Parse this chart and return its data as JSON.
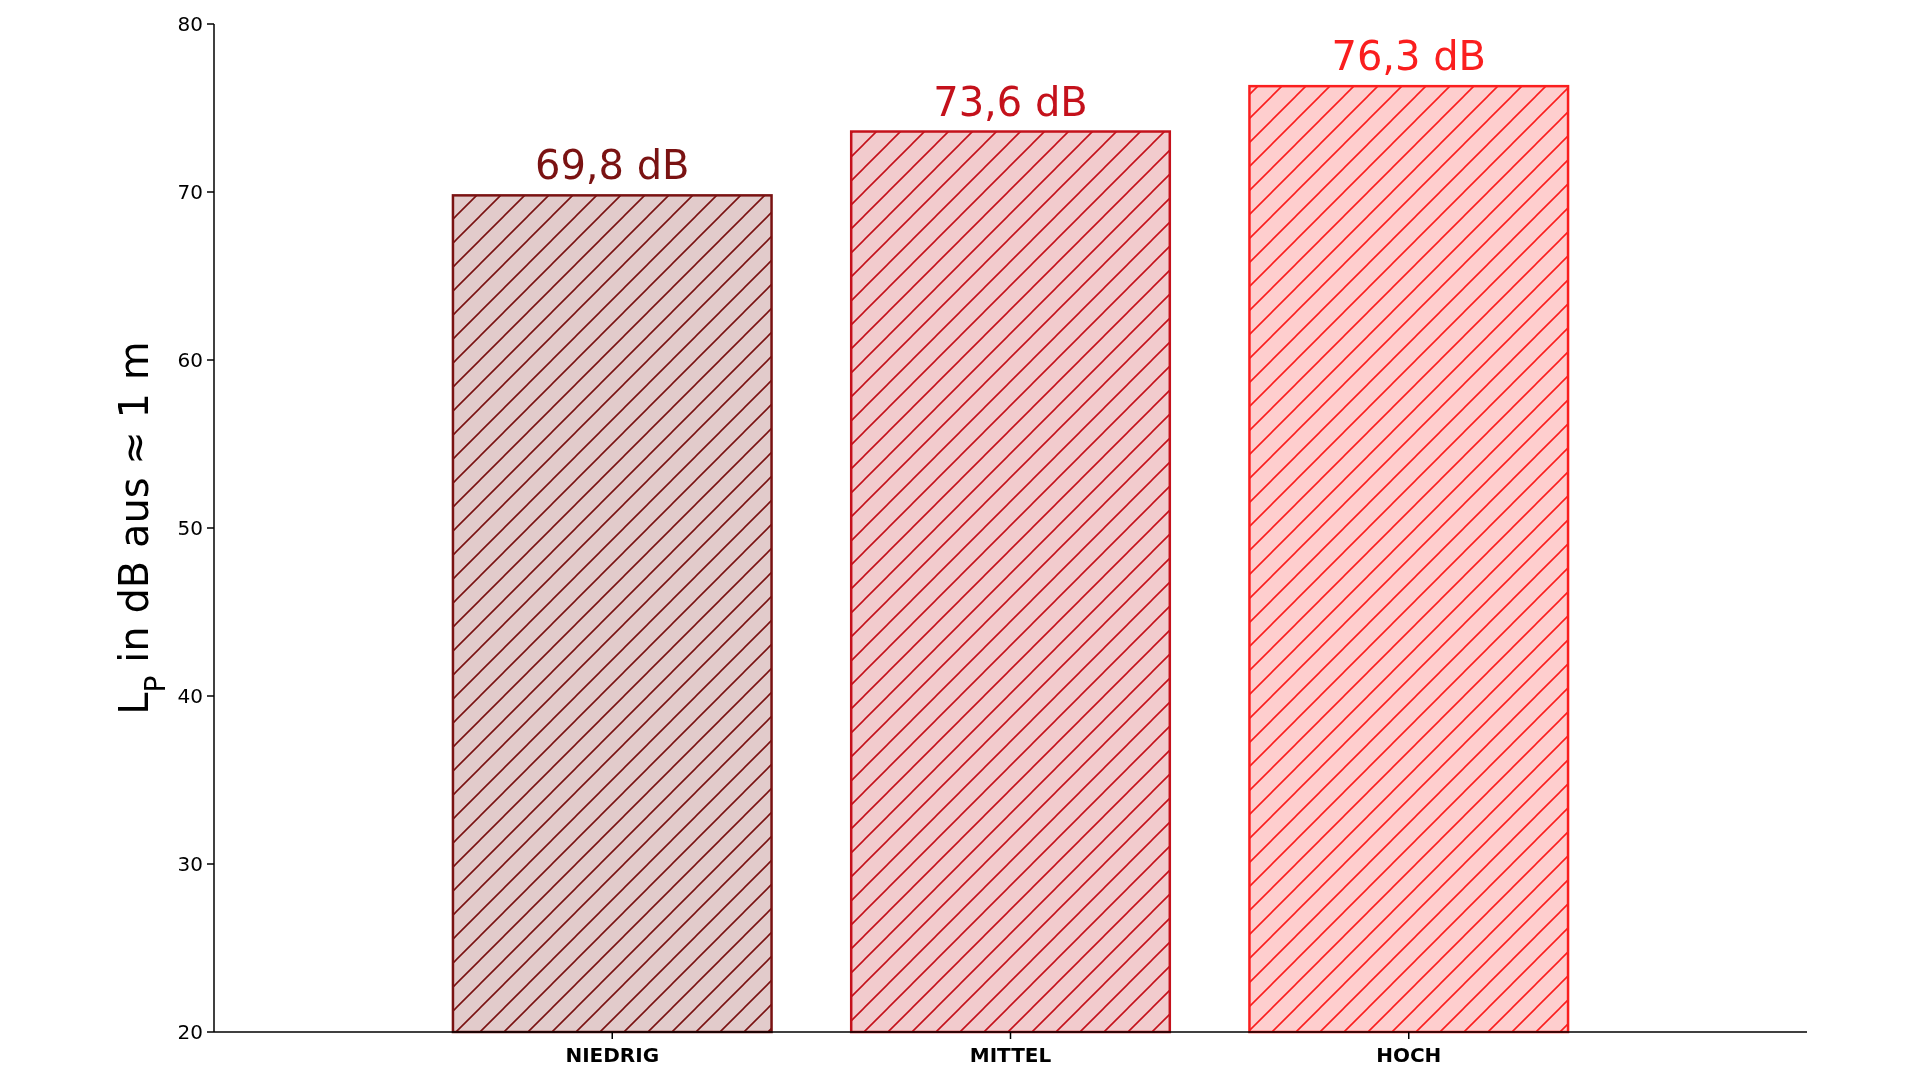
{
  "chart_data": {
    "type": "bar",
    "ylabel": "L$_{P}$ in dB aus ≈ 1 m",
    "categories": [
      "NIEDRIG",
      "MITTEL",
      "HOCH"
    ],
    "values": [
      69.8,
      73.6,
      76.3
    ],
    "colors": [
      "#7a1212",
      "#c4111b",
      "#fa1e1e"
    ],
    "value_labels": [
      "69,8 dB",
      "73,6 dB",
      "76,3 dB"
    ],
    "ylim": [
      20,
      80
    ],
    "yticks": [
      20,
      30,
      40,
      50,
      60,
      70,
      80
    ]
  }
}
